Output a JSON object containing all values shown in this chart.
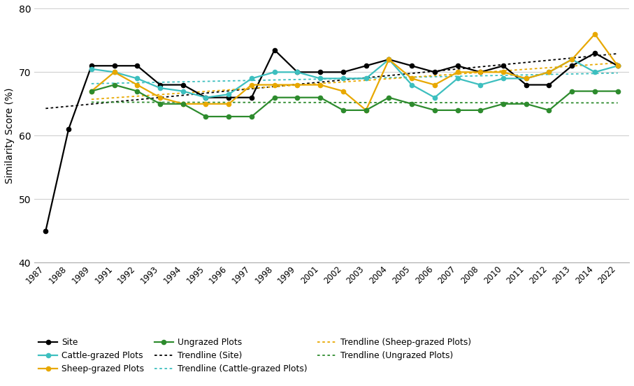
{
  "years": [
    1987,
    1988,
    1989,
    1991,
    1992,
    1993,
    1994,
    1995,
    1996,
    1997,
    1998,
    1999,
    2001,
    2002,
    2003,
    2004,
    2005,
    2006,
    2007,
    2008,
    2010,
    2011,
    2012,
    2013,
    2014,
    2022
  ],
  "site": [
    45,
    61,
    71,
    71,
    71,
    68,
    68,
    66,
    66,
    66,
    73.5,
    70,
    70,
    70,
    71,
    72,
    71,
    70,
    71,
    70,
    71,
    68,
    68,
    71,
    73,
    71
  ],
  "cattle": [
    null,
    null,
    70.5,
    70,
    69,
    67.5,
    67,
    66,
    66.5,
    69,
    70,
    70,
    69,
    69,
    69,
    72,
    68,
    66,
    69,
    68,
    69,
    69,
    70,
    72,
    70,
    71
  ],
  "sheep": [
    null,
    null,
    67,
    70,
    68,
    66,
    65,
    65,
    65,
    68,
    68,
    68,
    68,
    67,
    64,
    72,
    69,
    68,
    70,
    70,
    70,
    69,
    70,
    72,
    76,
    71
  ],
  "ungrazed": [
    null,
    null,
    67,
    68,
    67,
    65,
    65,
    63,
    63,
    63,
    66,
    66,
    66,
    64,
    64,
    66,
    65,
    64,
    64,
    64,
    65,
    65,
    64,
    67,
    67,
    67
  ],
  "site_color": "#000000",
  "cattle_color": "#3dbfbf",
  "sheep_color": "#e8a800",
  "ungrazed_color": "#2d8b2d",
  "ylabel": "Similarity Score (%)",
  "ylim": [
    40,
    80
  ],
  "yticks": [
    40,
    50,
    60,
    70,
    80
  ],
  "background_color": "#ffffff",
  "grid_color": "#d0d0d0"
}
